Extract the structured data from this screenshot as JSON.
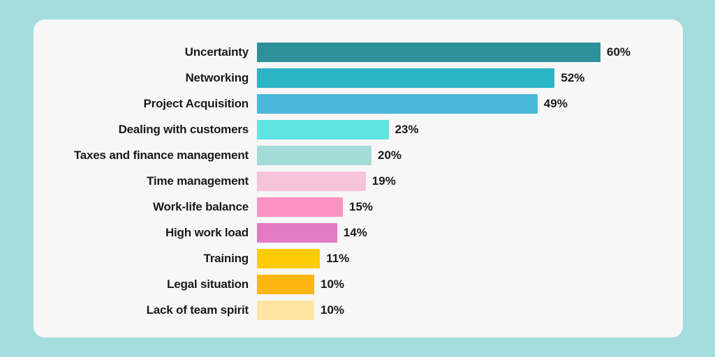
{
  "page": {
    "background_color": "#A5DCDD",
    "card_background_color": "#F7F7F7",
    "text_color": "#1A1A1A"
  },
  "chart_data": {
    "type": "bar",
    "orientation": "horizontal",
    "title": "",
    "xlabel": "",
    "ylabel": "",
    "grid": false,
    "legend": false,
    "value_suffix": "%",
    "xlim": [
      0,
      60
    ],
    "categories": [
      "Uncertainty",
      "Networking",
      "Project Acquisition",
      "Dealing with customers",
      "Taxes and finance management",
      "Time management",
      "Work-life balance",
      "High work load",
      "Training",
      "Legal situation",
      "Lack of team spirit"
    ],
    "values": [
      60,
      52,
      49,
      23,
      20,
      19,
      15,
      14,
      11,
      10,
      10
    ],
    "value_labels": [
      "60%",
      "52%",
      "49%",
      "23%",
      "20%",
      "19%",
      "15%",
      "14%",
      "11%",
      "10%",
      "10%"
    ],
    "colors": [
      "#2E9199",
      "#2BB5C5",
      "#47B8D8",
      "#5FE4E1",
      "#A5DBD8",
      "#F6C3D9",
      "#FC93C2",
      "#E27AC4",
      "#FFCB05",
      "#FDB713",
      "#FFE6A5"
    ]
  }
}
